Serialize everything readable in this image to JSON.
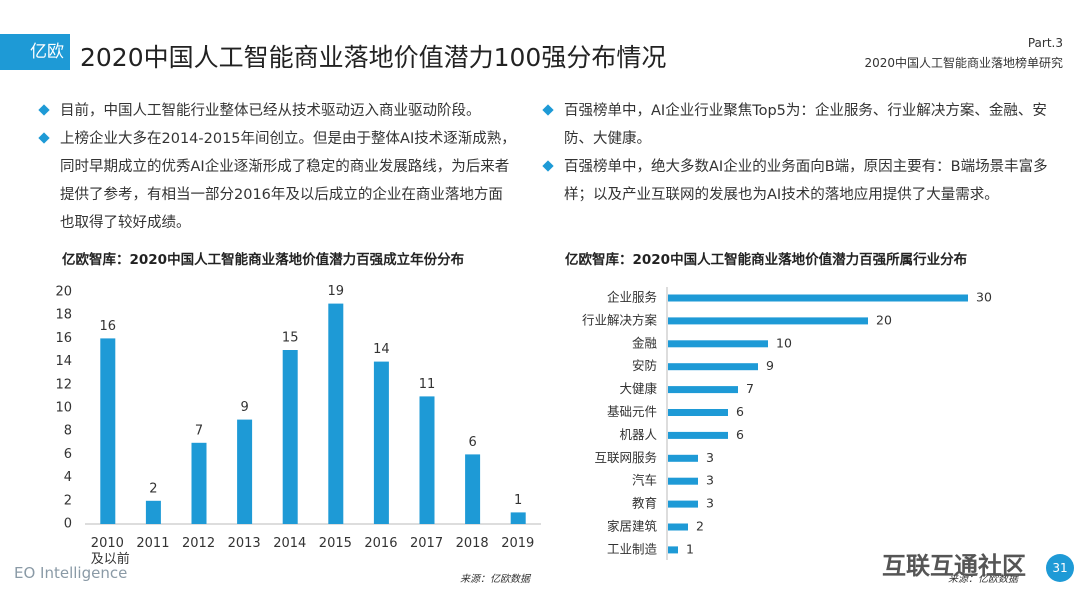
{
  "header": {
    "logo": "亿欧",
    "title": "2020中国人工智能商业落地价值潜力100强分布情况",
    "part": "Part.3",
    "section": "2020中国人工智能商业落地榜单研究"
  },
  "bullets_left": [
    "目前，中国人工智能行业整体已经从技术驱动迈入商业驱动阶段。",
    "上榜企业大多在2014-2015年间创立。但是由于整体AI技术逐渐成熟，同时早期成立的优秀AI企业逐渐形成了稳定的商业发展路线，为后来者提供了参考，有相当一部分2016年及以后成立的企业在商业落地方面也取得了较好成绩。"
  ],
  "bullets_right": [
    "百强榜单中，AI企业行业聚焦Top5为：企业服务、行业解决方案、金融、安防、大健康。",
    "百强榜单中，绝大多数AI企业的业务面向B端，原因主要有：B端场景丰富多样；以及产业互联网的发展也为AI技术的落地应用提供了大量需求。"
  ],
  "chart_data": [
    {
      "type": "bar",
      "title": "亿欧智库：2020中国人工智能商业落地价值潜力百强成立年份分布",
      "categories": [
        "2010\n及以前",
        "2011",
        "2012",
        "2013",
        "2014",
        "2015",
        "2016",
        "2017",
        "2018",
        "2019"
      ],
      "values": [
        16,
        2,
        7,
        9,
        15,
        19,
        14,
        11,
        6,
        1
      ],
      "color": "#1e9ad6",
      "ylim": [
        0,
        20
      ],
      "yticks": [
        0,
        2,
        4,
        6,
        8,
        10,
        12,
        14,
        16,
        18,
        20
      ],
      "grid": false,
      "source": "来源：亿欧数据"
    },
    {
      "type": "barh",
      "title": "亿欧智库：2020中国人工智能商业落地价值潜力百强所属行业分布",
      "categories": [
        "企业服务",
        "行业解决方案",
        "金融",
        "安防",
        "大健康",
        "基础元件",
        "机器人",
        "互联网服务",
        "汽车",
        "教育",
        "家居建筑",
        "工业制造"
      ],
      "values": [
        30,
        20,
        10,
        9,
        7,
        6,
        6,
        3,
        3,
        3,
        2,
        1
      ],
      "color": "#1e9ad6",
      "source": "来源：亿欧数据"
    }
  ],
  "footer": {
    "brand": "EO Intelligence",
    "watermark": "互联互通社区",
    "page": "31"
  }
}
